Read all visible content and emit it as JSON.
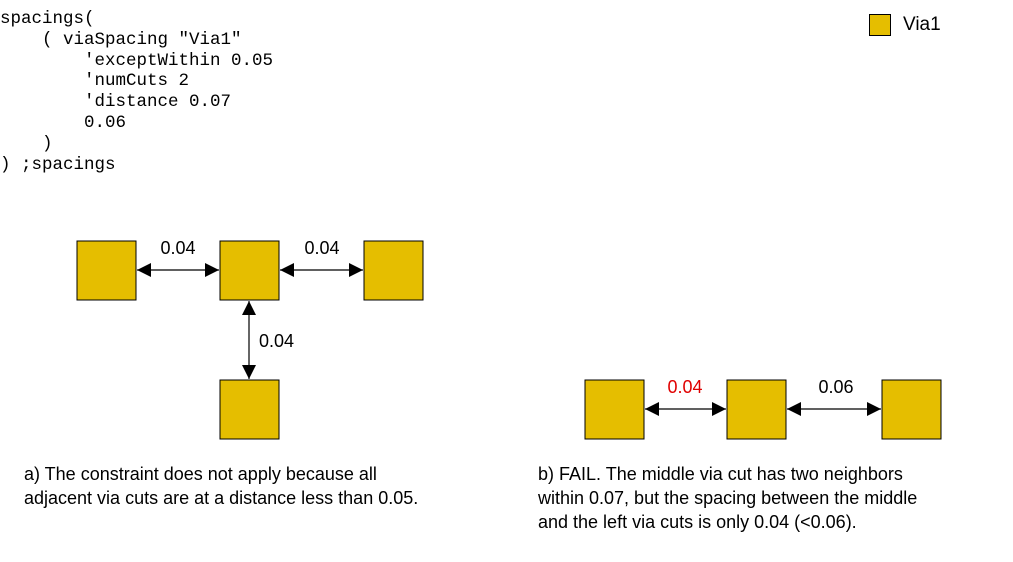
{
  "code": {
    "lines": [
      "spacings(",
      "    ( viaSpacing \"Via1\"",
      "        'exceptWithin 0.05",
      "        'numCuts 2",
      "        'distance 0.07",
      "        0.06",
      "    )",
      ") ;spacings"
    ]
  },
  "legend": {
    "label": "Via1",
    "color": "#e5be00"
  },
  "diagram_a": {
    "label_left": "0.04",
    "label_right": "0.04",
    "label_down": "0.04",
    "caption_lines": [
      "a) The constraint does not apply because all",
      "adjacent via cuts are at a distance less than 0.05."
    ]
  },
  "diagram_b": {
    "label_left": "0.04",
    "label_left_color": "#e00000",
    "label_right": "0.06",
    "caption_lines": [
      "b) FAIL. The middle via cut has two neighbors",
      "within 0.07, but the spacing between the middle",
      "and the left via cuts is only 0.04 (<0.06)."
    ]
  }
}
